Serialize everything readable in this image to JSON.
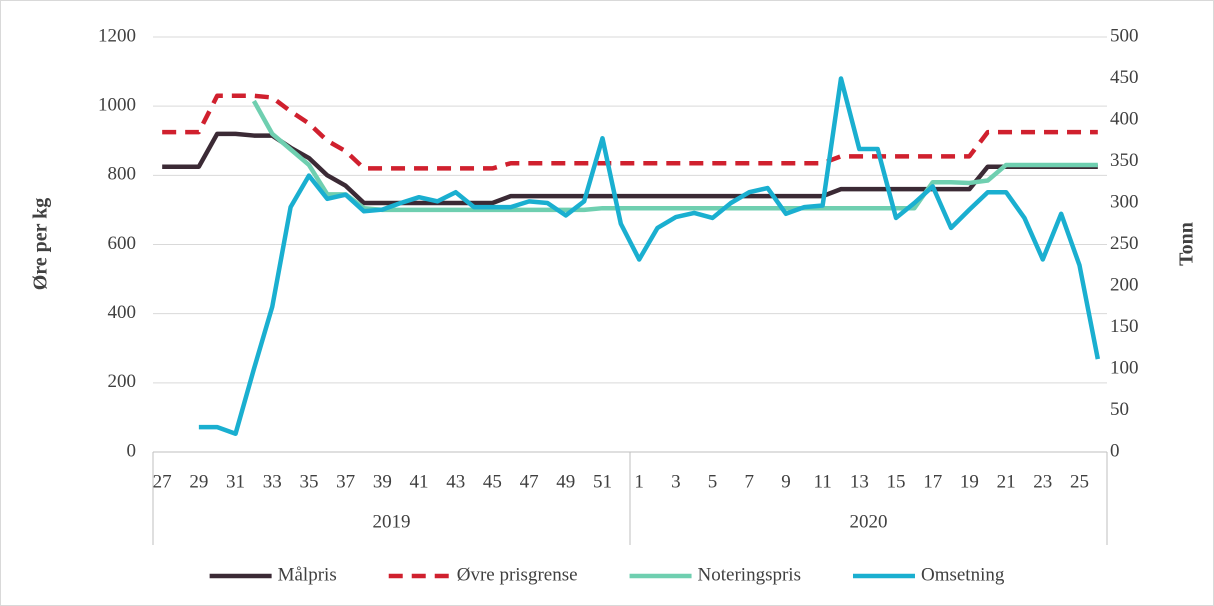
{
  "chart_data": {
    "type": "line",
    "y_label": "Øre per kg",
    "y2_label": "Tonn",
    "groups": [
      {
        "label": "2019",
        "categories": [
          "27",
          null,
          "29",
          null,
          "31",
          null,
          "33",
          null,
          "35",
          null,
          "37",
          null,
          "39",
          null,
          "41",
          null,
          "43",
          null,
          "45",
          null,
          "47",
          null,
          "49",
          null,
          "51",
          null
        ]
      },
      {
        "label": "2020",
        "categories": [
          "1",
          null,
          "3",
          null,
          "5",
          null,
          "7",
          null,
          "9",
          null,
          "11",
          null,
          "13",
          null,
          "15",
          null,
          "17",
          null,
          "19",
          null,
          "21",
          null,
          "23",
          null,
          "25",
          null
        ]
      }
    ],
    "ylim": [
      0,
      1200
    ],
    "yticks": [
      0,
      200,
      400,
      600,
      800,
      1000,
      1200
    ],
    "y2lim": [
      0,
      500
    ],
    "y2ticks": [
      0,
      50,
      100,
      150,
      200,
      250,
      300,
      350,
      400,
      450,
      500
    ],
    "grid": true,
    "legend": "bottom",
    "series": [
      {
        "name": "Målpris",
        "color": "#3b2a35",
        "dashed": false,
        "values": [
          825,
          825,
          825,
          920,
          920,
          915,
          915,
          880,
          850,
          800,
          770,
          720,
          720,
          720,
          720,
          720,
          720,
          720,
          720,
          740,
          740,
          740,
          740,
          740,
          740,
          740,
          740,
          740,
          740,
          740,
          740,
          740,
          740,
          740,
          740,
          740,
          740,
          760,
          760,
          760,
          760,
          760,
          760,
          760,
          760,
          825,
          825,
          825,
          825,
          825,
          825,
          825
        ]
      },
      {
        "name": "Øvre prisgrense",
        "color": "#d0202e",
        "dashed": true,
        "values": [
          925,
          925,
          925,
          1030,
          1030,
          1030,
          1025,
          985,
          950,
          900,
          870,
          820,
          820,
          820,
          820,
          820,
          820,
          820,
          820,
          835,
          835,
          835,
          835,
          835,
          835,
          835,
          835,
          835,
          835,
          835,
          835,
          835,
          835,
          835,
          835,
          835,
          835,
          855,
          855,
          855,
          855,
          855,
          855,
          855,
          855,
          925,
          925,
          925,
          925,
          925,
          925,
          925
        ]
      },
      {
        "name": "Noteringspris",
        "color": "#6fcfb0",
        "dashed": false,
        "values": [
          null,
          null,
          null,
          null,
          null,
          1015,
          920,
          875,
          830,
          745,
          745,
          705,
          700,
          700,
          700,
          700,
          700,
          700,
          700,
          700,
          700,
          700,
          700,
          700,
          705,
          705,
          705,
          705,
          705,
          705,
          705,
          705,
          705,
          705,
          705,
          705,
          705,
          705,
          705,
          705,
          705,
          705,
          780,
          780,
          778,
          785,
          830,
          830,
          830,
          830,
          830,
          830
        ]
      },
      {
        "name": "Omsetning",
        "color": "#1aafd0",
        "dashed": false,
        "axis": "y2",
        "values": [
          null,
          null,
          30,
          30,
          22,
          100,
          175,
          295,
          333,
          305,
          310,
          290,
          292,
          300,
          307,
          302,
          313,
          295,
          295,
          295,
          302,
          300,
          285,
          302,
          378,
          275,
          232,
          270,
          283,
          288,
          282,
          300,
          313,
          318,
          287,
          295,
          297,
          450,
          365,
          365,
          282,
          300,
          320,
          270,
          292,
          313,
          313,
          282,
          232,
          287,
          225,
          112
        ]
      }
    ]
  }
}
